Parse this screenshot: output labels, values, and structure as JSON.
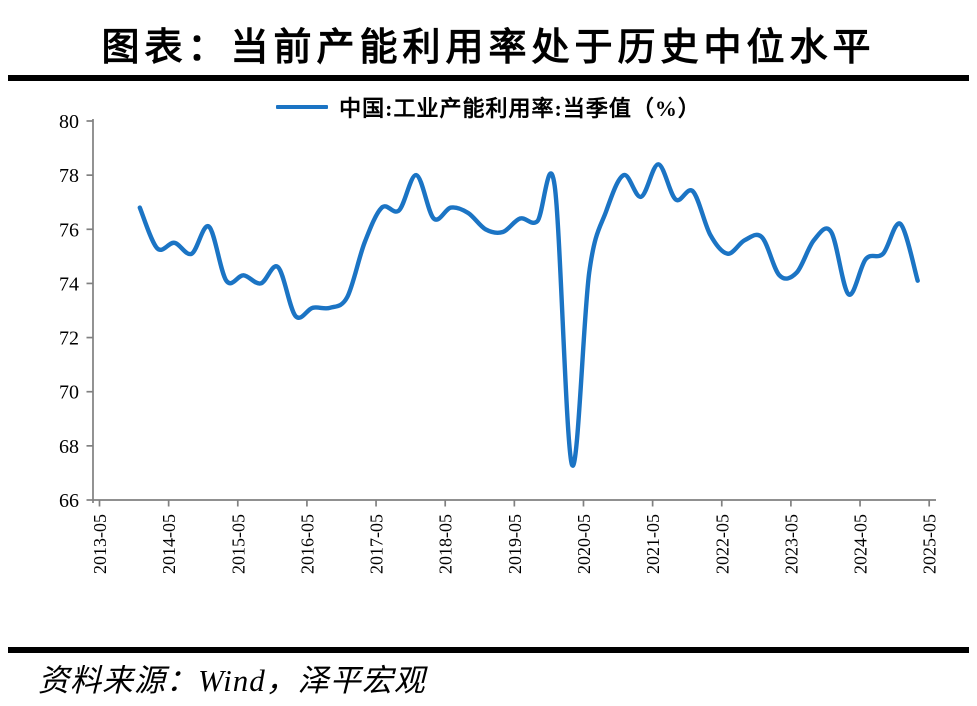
{
  "title": "图表：当前产能利用率处于历史中位水平",
  "legend": {
    "label": "中国:工业产能利用率:当季值（%）"
  },
  "footer": {
    "source": "资料来源：Wind，泽平宏观"
  },
  "colors": {
    "line": "#1b74c4",
    "axis": "#808080",
    "text": "#000000",
    "rule": "#000000"
  },
  "chart_data": {
    "type": "line",
    "title": "图表：当前产能利用率处于历史中位水平",
    "xlabel": "",
    "ylabel": "",
    "ylim": [
      66,
      80
    ],
    "yticks": [
      66,
      68,
      70,
      72,
      74,
      76,
      78,
      80
    ],
    "xtick_labels": [
      "2013-05",
      "2014-05",
      "2015-05",
      "2016-05",
      "2017-05",
      "2018-05",
      "2019-05",
      "2020-05",
      "2021-05",
      "2022-05",
      "2023-05",
      "2024-05",
      "2025-05"
    ],
    "grid": false,
    "legend_position": "top",
    "series": [
      {
        "name": "中国:工业产能利用率:当季值（%）",
        "color": "#1b74c4",
        "x": [
          "2013-12",
          "2014-03",
          "2014-06",
          "2014-09",
          "2014-12",
          "2015-03",
          "2015-06",
          "2015-09",
          "2015-12",
          "2016-03",
          "2016-06",
          "2016-09",
          "2016-12",
          "2017-03",
          "2017-06",
          "2017-09",
          "2017-12",
          "2018-03",
          "2018-06",
          "2018-09",
          "2018-12",
          "2019-03",
          "2019-06",
          "2019-09",
          "2019-12",
          "2020-03",
          "2020-06",
          "2020-09",
          "2020-12",
          "2021-03",
          "2021-06",
          "2021-09",
          "2021-12",
          "2022-03",
          "2022-06",
          "2022-09",
          "2022-12",
          "2023-03",
          "2023-06",
          "2023-09",
          "2023-12",
          "2024-03",
          "2024-06",
          "2024-09",
          "2024-12",
          "2025-03"
        ],
        "values": [
          76.8,
          75.3,
          75.5,
          75.1,
          76.1,
          74.1,
          74.3,
          74.0,
          74.6,
          72.8,
          73.1,
          73.1,
          73.5,
          75.5,
          76.8,
          76.7,
          78.0,
          76.4,
          76.8,
          76.6,
          76.0,
          75.9,
          76.4,
          76.3,
          77.6,
          67.3,
          74.4,
          76.7,
          78.0,
          77.2,
          78.4,
          77.1,
          77.4,
          75.8,
          75.1,
          75.6,
          75.7,
          74.3,
          74.4,
          75.6,
          75.9,
          73.6,
          74.9,
          75.1,
          76.2,
          74.1
        ]
      }
    ]
  }
}
